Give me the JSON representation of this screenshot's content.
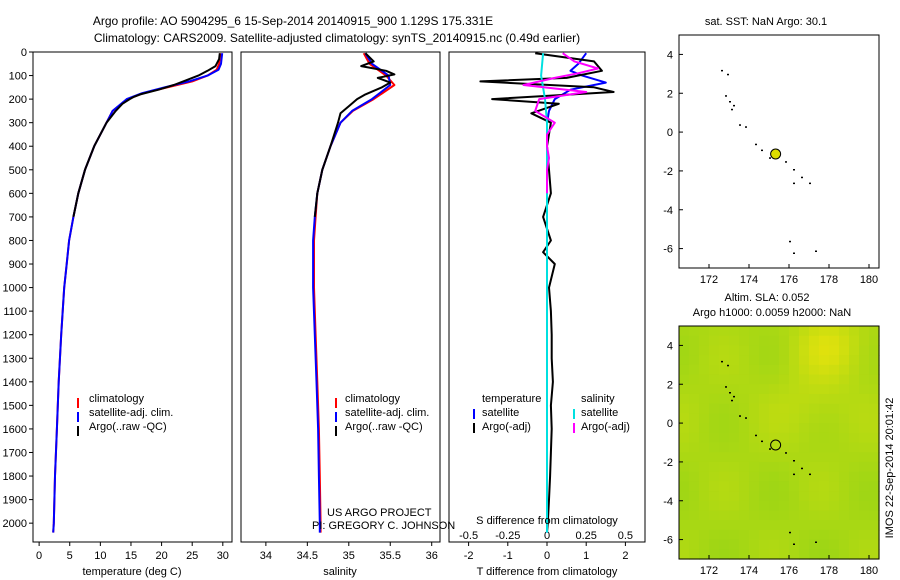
{
  "header": {
    "title_line1": "Argo profile: AO 5904295_6 15-Sep-2014 20140915_900 1.129S 175.331E",
    "title_line2": "Climatology: CARS2009. Satellite-adjusted climatology: synTS_20140915.nc (0.49d earlier)"
  },
  "watermark": "IMOS 22-Sep-2014 20:01:42",
  "credits": [
    "US ARGO PROJECT",
    "PI: GREGORY C. JOHNSON"
  ],
  "colors": {
    "climatology": "#ff0000",
    "satellite": "#0000ff",
    "argo": "#000000",
    "salinity_satellite": "#00e0e0",
    "salinity_argo": "#ff00ff",
    "marker": "#dddd00"
  },
  "chart_data": [
    {
      "id": "temperature",
      "type": "line",
      "xlabel": "temperature (deg C)",
      "ylabel": "",
      "xlim": [
        -1,
        31.5
      ],
      "ylim": [
        2080,
        0
      ],
      "xticks": [
        0,
        5,
        10,
        15,
        20,
        25,
        30
      ],
      "yticks": [
        0,
        100,
        200,
        300,
        400,
        500,
        600,
        700,
        800,
        900,
        1000,
        1100,
        1200,
        1300,
        1400,
        1500,
        1600,
        1700,
        1800,
        1900,
        2000
      ],
      "legend": [
        "climatology",
        "satellite-adj. clim.",
        "Argo(..raw -QC)"
      ],
      "legend_placement": "bottom-left",
      "series": [
        {
          "name": "climatology",
          "color": "#ff0000",
          "depth": [
            5,
            50,
            75,
            100,
            125,
            150,
            175,
            200,
            250,
            300,
            400,
            500,
            600,
            700,
            800,
            900,
            1000,
            1200,
            1400,
            1600,
            1800,
            2000,
            2040
          ],
          "values": [
            29.6,
            29.4,
            29.0,
            27.5,
            25.0,
            21.0,
            17.0,
            14.5,
            12.0,
            11.0,
            9.0,
            7.5,
            6.4,
            5.6,
            4.9,
            4.5,
            4.1,
            3.6,
            3.2,
            2.9,
            2.6,
            2.4,
            2.3
          ]
        },
        {
          "name": "satellite-adj. clim.",
          "color": "#0000ff",
          "depth": [
            5,
            50,
            75,
            100,
            125,
            150,
            175,
            200,
            250,
            300,
            400,
            500,
            600,
            700,
            800,
            900,
            1000,
            1200,
            1400,
            1600,
            1800,
            2000,
            2040
          ],
          "values": [
            29.9,
            29.7,
            29.3,
            27.5,
            24.5,
            20.5,
            16.8,
            14.3,
            12.0,
            11.0,
            9.0,
            7.5,
            6.4,
            5.6,
            4.9,
            4.5,
            4.1,
            3.6,
            3.2,
            2.9,
            2.6,
            2.4,
            2.3
          ]
        },
        {
          "name": "Argo(..raw -QC)",
          "color": "#000000",
          "depth": [
            5,
            30,
            60,
            80,
            100,
            120,
            140,
            160,
            180,
            190,
            200,
            220,
            250,
            300,
            400,
            500,
            600,
            700
          ],
          "values": [
            29.5,
            29.4,
            28.8,
            27.5,
            26.0,
            24.0,
            22.0,
            19.5,
            16.5,
            15.5,
            14.8,
            13.6,
            12.5,
            11.0,
            9.0,
            7.5,
            6.4,
            5.6
          ]
        }
      ]
    },
    {
      "id": "salinity",
      "type": "line",
      "xlabel": "salinity",
      "ylabel": "",
      "xlim": [
        33.7,
        36.1
      ],
      "ylim": [
        2080,
        0
      ],
      "xticks": [
        34,
        34.5,
        35,
        35.5,
        36
      ],
      "legend": [
        "climatology",
        "satellite-adj. clim.",
        "Argo(..raw -QC)"
      ],
      "legend_placement": "bottom-left",
      "series": [
        {
          "name": "climatology",
          "color": "#ff0000",
          "depth": [
            5,
            50,
            100,
            140,
            200,
            250,
            300,
            400,
            500,
            600,
            700,
            800,
            1000,
            1200,
            1400,
            1600,
            1800,
            2000,
            2040
          ],
          "values": [
            35.18,
            35.25,
            35.45,
            35.55,
            35.3,
            35.05,
            34.9,
            34.78,
            34.68,
            34.62,
            34.6,
            34.58,
            34.58,
            34.6,
            34.62,
            34.64,
            34.65,
            34.66,
            34.66
          ]
        },
        {
          "name": "satellite-adj. clim.",
          "color": "#0000ff",
          "depth": [
            5,
            50,
            100,
            140,
            200,
            250,
            300,
            400,
            500,
            600,
            700,
            800,
            1000,
            1200,
            1400,
            1600,
            1800,
            2000,
            2040
          ],
          "values": [
            35.2,
            35.28,
            35.48,
            35.5,
            35.28,
            35.04,
            34.9,
            34.78,
            34.68,
            34.62,
            34.59,
            34.57,
            34.57,
            34.59,
            34.61,
            34.63,
            34.64,
            34.65,
            34.65
          ]
        },
        {
          "name": "Argo(..raw -QC)",
          "color": "#000000",
          "depth": [
            5,
            40,
            60,
            80,
            95,
            110,
            130,
            150,
            180,
            200,
            230,
            260,
            300,
            400,
            500,
            600,
            700
          ],
          "values": [
            35.2,
            35.3,
            35.15,
            35.45,
            35.55,
            35.35,
            35.5,
            35.4,
            35.2,
            35.1,
            35.0,
            34.9,
            34.87,
            34.78,
            34.68,
            34.62,
            34.59
          ]
        }
      ]
    },
    {
      "id": "difference",
      "type": "line",
      "xlabel": "T difference from climatology",
      "x2label": "S difference from climatology",
      "xlim": [
        -2.5,
        2.5
      ],
      "ylim": [
        2080,
        0
      ],
      "xticks": [
        -2,
        -1,
        0,
        1,
        2
      ],
      "x2ticks": [
        "-0.5",
        "-0.25",
        "0",
        "0.25",
        "0.5"
      ],
      "legend": [
        "temperature",
        "satellite",
        "Argo(-adj)",
        "salinity",
        "satellite",
        "Argo(-adj)"
      ],
      "legend_placement": "bottom",
      "series": [
        {
          "name": "temperature satellite",
          "color": "#0000ff",
          "depth": [
            5,
            50,
            80,
            100,
            130,
            160,
            200,
            250,
            300,
            400,
            600,
            800,
            1000,
            1500,
            2040
          ],
          "values": [
            1.0,
            0.8,
            0.6,
            0.9,
            1.5,
            0.6,
            0.2,
            0.05,
            0.0,
            0.0,
            0.0,
            0.0,
            0.0,
            0.0,
            0.0
          ]
        },
        {
          "name": "temperature Argo(-adj)",
          "color": "#000000",
          "depth": [
            5,
            40,
            80,
            110,
            125,
            150,
            170,
            200,
            220,
            260,
            300,
            400,
            500,
            600,
            700,
            800,
            850,
            900,
            1000,
            1100,
            1200,
            1300,
            1400,
            1500,
            1600,
            1700,
            1800,
            1900,
            2000,
            2040
          ],
          "values": [
            -0.3,
            1.2,
            1.4,
            0.5,
            -1.7,
            1.2,
            1.7,
            -1.4,
            0.3,
            -0.4,
            0.1,
            0.0,
            0.05,
            0.1,
            -0.1,
            0.1,
            -0.1,
            0.2,
            0.05,
            0.1,
            0.12,
            0.12,
            0.15,
            0.1,
            0.12,
            0.1,
            0.08,
            0.05,
            0.02,
            0.0
          ]
        },
        {
          "name": "salinity satellite",
          "color": "#00e0e0",
          "depth": [
            5,
            100,
            200,
            300,
            500,
            800,
            1200,
            1600,
            2040
          ],
          "values": [
            -0.1,
            -0.15,
            -0.05,
            0.0,
            0.0,
            0.0,
            0.0,
            0.0,
            0.0
          ]
        },
        {
          "name": "salinity Argo(-adj)",
          "color": "#ff00ff",
          "depth": [
            5,
            40,
            70,
            90,
            110,
            140,
            170,
            200,
            250,
            300,
            350,
            400,
            450,
            500,
            600
          ],
          "values": [
            0.4,
            0.7,
            1.3,
            0.8,
            0.2,
            -0.6,
            1.0,
            -0.2,
            -0.3,
            0.2,
            0.0,
            0.0,
            0.05,
            0.0,
            0.0
          ]
        }
      ]
    },
    {
      "id": "map_top",
      "type": "scatter",
      "title": "sat. SST: NaN Argo: 30.1",
      "xlim": [
        170.5,
        180.5
      ],
      "ylim": [
        -7,
        5
      ],
      "xticks": [
        172,
        174,
        176,
        178,
        180
      ],
      "yticks": [
        4,
        2,
        0,
        -2,
        -4,
        -6
      ],
      "argo_position": {
        "x": 175.331,
        "y": -1.129
      }
    },
    {
      "id": "map_bottom",
      "type": "heatmap",
      "title_line1": "Altim. SLA: 0.052",
      "title_line2": "Argo h1000: 0.0059 h2000: NaN",
      "xlim": [
        170.5,
        180.5
      ],
      "ylim": [
        -7,
        5
      ],
      "xticks": [
        172,
        174,
        176,
        178,
        180
      ],
      "yticks": [
        4,
        2,
        0,
        -2,
        -4,
        -6
      ],
      "argo_position": {
        "x": 175.331,
        "y": -1.129
      }
    }
  ]
}
